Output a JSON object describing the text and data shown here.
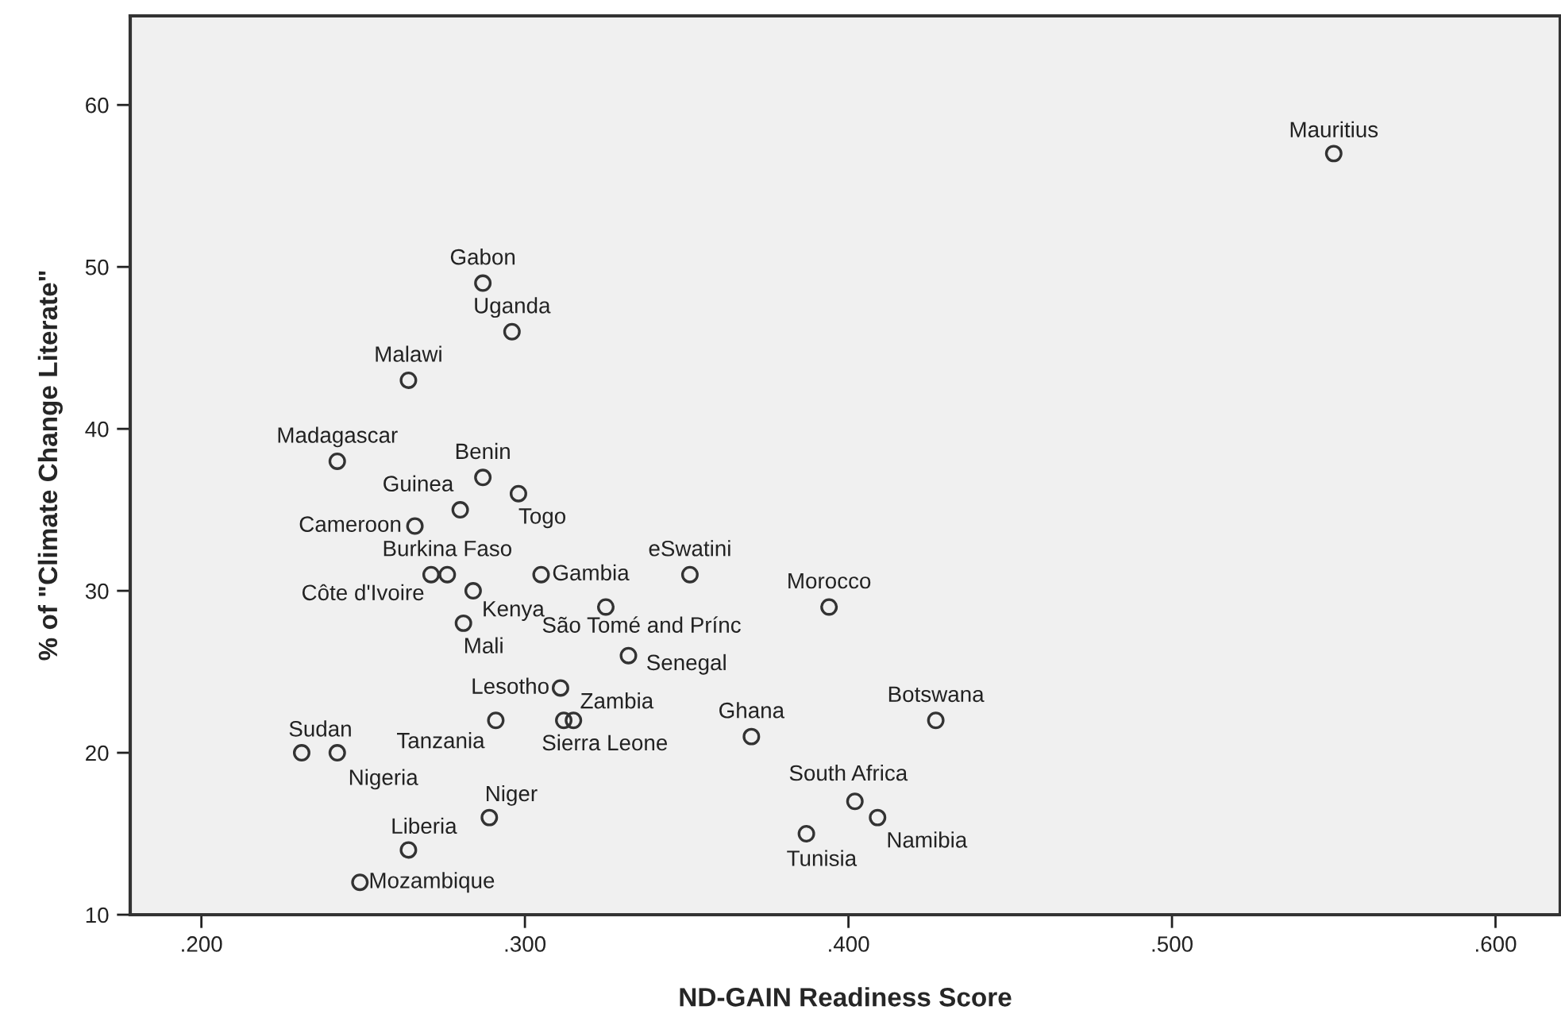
{
  "chart_data": {
    "type": "scatter",
    "xlabel": "ND-GAIN Readiness Score",
    "ylabel": "% of \"Climate Change Literate\"",
    "xlim": [
      0.178,
      0.62
    ],
    "ylim": [
      10,
      65.5
    ],
    "xticks": [
      {
        "value": 0.2,
        "label": ".200"
      },
      {
        "value": 0.3,
        "label": ".300"
      },
      {
        "value": 0.4,
        "label": ".400"
      },
      {
        "value": 0.5,
        "label": ".500"
      },
      {
        "value": 0.6,
        "label": ".600"
      }
    ],
    "yticks": [
      10,
      20,
      30,
      40,
      50,
      60
    ],
    "grid": false,
    "marker": "circle",
    "series": [
      {
        "color": "#333333",
        "x": [
          0.55,
          0.287,
          0.296,
          0.264,
          0.242,
          0.287,
          0.298,
          0.28,
          0.266,
          0.271,
          0.276,
          0.284,
          0.281,
          0.305,
          0.351,
          0.325,
          0.332,
          0.394,
          0.311,
          0.315,
          0.312,
          0.291,
          0.37,
          0.427,
          0.231,
          0.242,
          0.289,
          0.264,
          0.249,
          0.402,
          0.409,
          0.387
        ],
        "values": [
          57,
          49,
          46,
          43,
          38,
          37,
          36,
          35,
          34,
          31,
          31,
          30,
          28,
          31,
          31,
          29,
          26,
          29,
          24,
          22,
          22,
          22,
          21,
          22,
          20,
          20,
          16,
          14,
          12,
          17,
          16,
          15
        ],
        "value_labels": [
          "Mauritius",
          "Gabon",
          "Uganda",
          "Malawi",
          "Madagascar",
          "Benin",
          "Togo",
          "Guinea",
          "Cameroon",
          "Côte d'Ivoire",
          "Burkina Faso",
          "Kenya",
          "Mali",
          "Gambia",
          "eSwatini",
          "São Tomé and Prínc",
          "Senegal",
          "Morocco",
          "Lesotho",
          "Zambia",
          "Sierra Leone",
          "Tanzania",
          "Ghana",
          "Botswana",
          "Sudan",
          "Nigeria",
          "Niger",
          "Liberia",
          "Mozambique",
          "South Africa",
          "Namibia",
          "Tunisia"
        ]
      }
    ]
  }
}
